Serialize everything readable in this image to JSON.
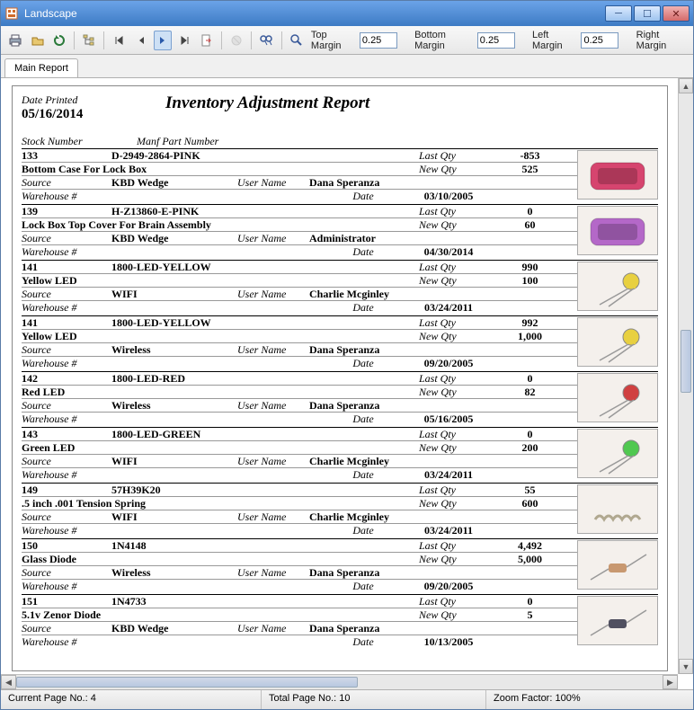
{
  "window": {
    "title": "Landscape"
  },
  "toolbar": {
    "top_margin_label": "Top Margin",
    "top_margin": "0.25",
    "bottom_margin_label": "Bottom Margin",
    "bottom_margin": "0.25",
    "left_margin_label": "Left Margin",
    "left_margin": "0.25",
    "right_margin_label": "Right Margin"
  },
  "tab": "Main Report",
  "report": {
    "date_printed_label": "Date Printed",
    "date_printed": "05/16/2014",
    "title": "Inventory Adjustment Report",
    "col_stock": "Stock Number",
    "col_part": "Manf Part Number",
    "labels": {
      "last_qty": "Last Qty",
      "new_qty": "New Qty",
      "source": "Source",
      "user_name": "User Name",
      "warehouse": "Warehouse #",
      "date": "Date"
    }
  },
  "entries": [
    {
      "stock": "133",
      "part": "D-2949-2864-PINK",
      "desc": "Bottom Case For Lock Box",
      "source": "KBD Wedge",
      "user": "Dana Speranza",
      "warehouse": "",
      "date": "03/10/2005",
      "last": "-853",
      "new": "525",
      "img": "pink-case"
    },
    {
      "stock": "139",
      "part": "H-Z13860-E-PINK",
      "desc": "Lock Box Top Cover For Brain Assembly",
      "source": "KBD Wedge",
      "user": "Administrator",
      "warehouse": "",
      "date": "04/30/2014",
      "last": "0",
      "new": "60",
      "img": "purple-case"
    },
    {
      "stock": "141",
      "part": "1800-LED-YELLOW",
      "desc": "Yellow LED",
      "source": "WIFI",
      "user": "Charlie Mcginley",
      "warehouse": "",
      "date": "03/24/2011",
      "last": "990",
      "new": "100",
      "img": "yellow-led"
    },
    {
      "stock": "141",
      "part": "1800-LED-YELLOW",
      "desc": "Yellow LED",
      "source": "Wireless",
      "user": "Dana Speranza",
      "warehouse": "",
      "date": "09/20/2005",
      "last": "992",
      "new": "1,000",
      "img": "yellow-led"
    },
    {
      "stock": "142",
      "part": "1800-LED-RED",
      "desc": "Red LED",
      "source": "Wireless",
      "user": "Dana Speranza",
      "warehouse": "",
      "date": "05/16/2005",
      "last": "0",
      "new": "82",
      "img": "red-led"
    },
    {
      "stock": "143",
      "part": "1800-LED-GREEN",
      "desc": "Green LED",
      "source": "WIFI",
      "user": "Charlie Mcginley",
      "warehouse": "",
      "date": "03/24/2011",
      "last": "0",
      "new": "200",
      "img": "green-led"
    },
    {
      "stock": "149",
      "part": "57H39K20",
      "desc": ".5 inch .001 Tension Spring",
      "source": "WIFI",
      "user": "Charlie Mcginley",
      "warehouse": "",
      "date": "03/24/2011",
      "last": "55",
      "new": "600",
      "img": "spring"
    },
    {
      "stock": "150",
      "part": "1N4148",
      "desc": "Glass Diode",
      "source": "Wireless",
      "user": "Dana Speranza",
      "warehouse": "",
      "date": "09/20/2005",
      "last": "4,492",
      "new": "5,000",
      "img": "glass-diode"
    },
    {
      "stock": "151",
      "part": "1N4733",
      "desc": "5.1v Zenor Diode",
      "source": "KBD Wedge",
      "user": "Dana Speranza",
      "warehouse": "",
      "date": "10/13/2005",
      "last": "0",
      "new": "5",
      "img": "zener-diode"
    }
  ],
  "status": {
    "current_page_label": "Current Page No.:",
    "current_page": "4",
    "total_page_label": "Total Page No.:",
    "total_page": "10",
    "zoom_label": "Zoom Factor:",
    "zoom": "100%"
  },
  "img_colors": {
    "pink-case": "#d6456f",
    "purple-case": "#b468c8",
    "yellow-led": "#e8d040",
    "red-led": "#d04040",
    "green-led": "#50c850",
    "spring": "#b0a890",
    "glass-diode": "#c89870",
    "zener-diode": "#505060"
  }
}
